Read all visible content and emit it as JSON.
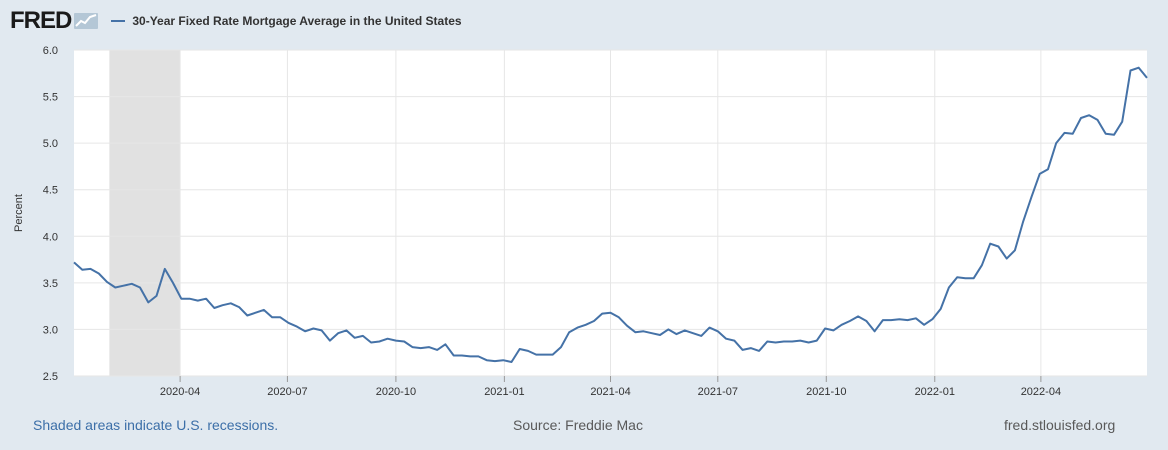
{
  "header": {
    "logo_text": "FRED",
    "logo_icon": "trend-line-icon",
    "legend_label": "30-Year Fixed Rate Mortgage Average in the United States",
    "series_color": "#4572a7"
  },
  "footer": {
    "recession_note": "Shaded areas indicate U.S. recessions.",
    "source": "Source: Freddie Mac",
    "site": "fred.stlouisfed.org"
  },
  "chart_data": {
    "type": "line",
    "title": "30-Year Fixed Rate Mortgage Average in the United States",
    "ylabel": "Percent",
    "xlabel": "",
    "ylim": [
      2.5,
      6.0
    ],
    "yticks": [
      "2.5",
      "3.0",
      "3.5",
      "4.0",
      "4.5",
      "5.0",
      "5.5",
      "6.0"
    ],
    "xticks": [
      "2020-04",
      "2020-07",
      "2020-10",
      "2021-01",
      "2021-04",
      "2021-07",
      "2021-10",
      "2022-01",
      "2022-04"
    ],
    "x_start": "2020-01-02",
    "x_step": "weekly",
    "recession": {
      "start": "2020-02",
      "end": "2020-04",
      "color": "#e1e1e1"
    },
    "grid": true,
    "series": [
      {
        "name": "30-Year Fixed Rate Mortgage Average in the United States",
        "values": [
          3.72,
          3.64,
          3.65,
          3.6,
          3.51,
          3.45,
          3.47,
          3.49,
          3.45,
          3.29,
          3.36,
          3.65,
          3.5,
          3.33,
          3.33,
          3.31,
          3.33,
          3.23,
          3.26,
          3.28,
          3.24,
          3.15,
          3.18,
          3.21,
          3.13,
          3.13,
          3.07,
          3.03,
          2.98,
          3.01,
          2.99,
          2.88,
          2.96,
          2.99,
          2.91,
          2.93,
          2.86,
          2.87,
          2.9,
          2.88,
          2.87,
          2.81,
          2.8,
          2.81,
          2.78,
          2.84,
          2.72,
          2.72,
          2.71,
          2.71,
          2.67,
          2.66,
          2.67,
          2.65,
          2.79,
          2.77,
          2.73,
          2.73,
          2.73,
          2.81,
          2.97,
          3.02,
          3.05,
          3.09,
          3.17,
          3.18,
          3.13,
          3.04,
          2.97,
          2.98,
          2.96,
          2.94,
          3.0,
          2.95,
          2.99,
          2.96,
          2.93,
          3.02,
          2.98,
          2.9,
          2.88,
          2.78,
          2.8,
          2.77,
          2.87,
          2.86,
          2.87,
          2.87,
          2.88,
          2.86,
          2.88,
          3.01,
          2.99,
          3.05,
          3.09,
          3.14,
          3.09,
          2.98,
          3.1,
          3.1,
          3.11,
          3.1,
          3.12,
          3.05,
          3.11,
          3.22,
          3.45,
          3.56,
          3.55,
          3.55,
          3.69,
          3.92,
          3.89,
          3.76,
          3.85,
          4.16,
          4.42,
          4.67,
          4.72,
          5.0,
          5.11,
          5.1,
          5.27,
          5.3,
          5.25,
          5.1,
          5.09,
          5.23,
          5.78,
          5.81,
          5.7
        ]
      }
    ]
  }
}
